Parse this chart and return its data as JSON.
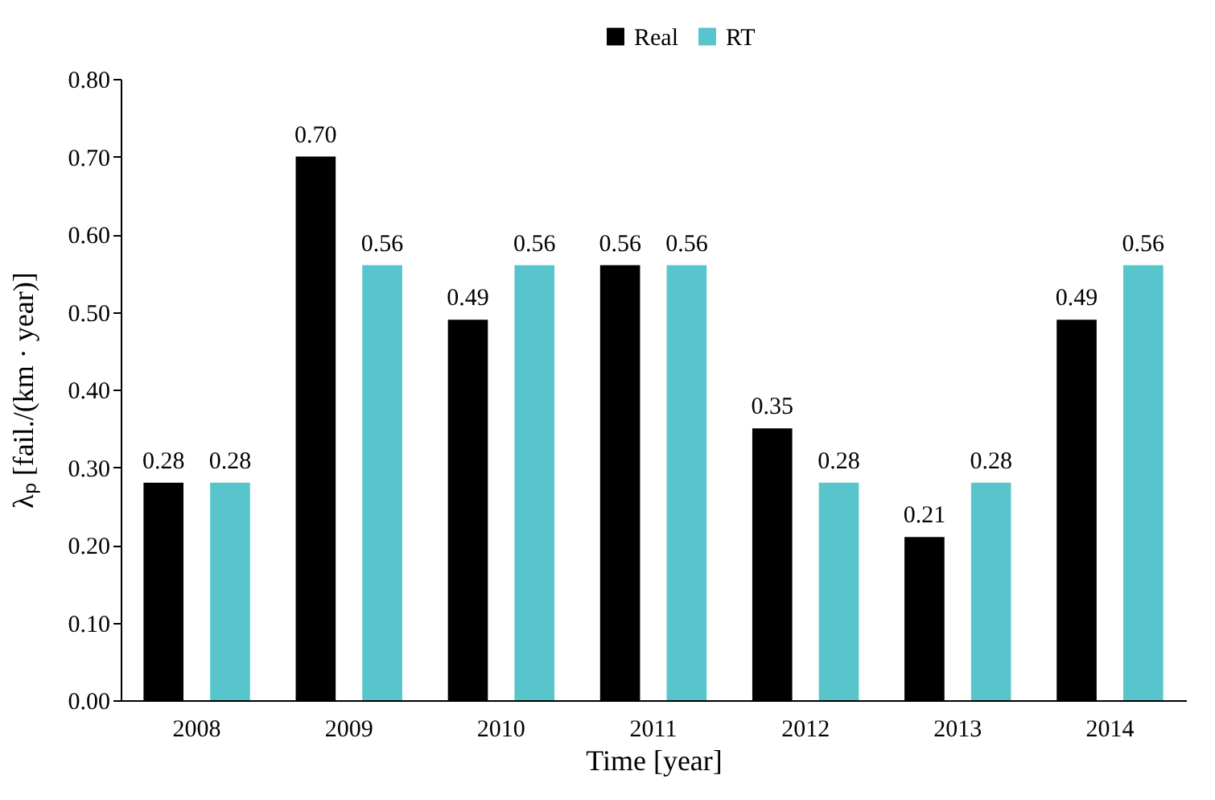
{
  "chart_data": {
    "type": "bar",
    "xlabel": "Time [year]",
    "ylabel": "λₚ [fail./(km · year)]",
    "categories": [
      "2008",
      "2009",
      "2010",
      "2011",
      "2012",
      "2013",
      "2014"
    ],
    "series": [
      {
        "name": "Real",
        "color": "#000000",
        "values": [
          0.28,
          0.7,
          0.49,
          0.56,
          0.35,
          0.21,
          0.49
        ],
        "value_labels": [
          "0.28",
          "0.70",
          "0.49",
          "0.56",
          "0.35",
          "0.21",
          "0.49"
        ]
      },
      {
        "name": "RT",
        "color": "#57c5cb",
        "values": [
          0.28,
          0.56,
          0.56,
          0.56,
          0.28,
          0.28,
          0.56
        ],
        "value_labels": [
          "0.28",
          "0.56",
          "0.56",
          "0.56",
          "0.28",
          "0.28",
          "0.56"
        ]
      }
    ],
    "ylim": [
      0,
      0.8
    ],
    "yticks": [
      {
        "value": 0,
        "label": "0.00"
      },
      {
        "value": 0.1,
        "label": "0.10"
      },
      {
        "value": 0.2,
        "label": "0.20"
      },
      {
        "value": 0.3,
        "label": "0.30"
      },
      {
        "value": 0.4,
        "label": "0.40"
      },
      {
        "value": 0.5,
        "label": "0.50"
      },
      {
        "value": 0.6,
        "label": "0.60"
      },
      {
        "value": 0.7,
        "label": "0.70"
      },
      {
        "value": 0.8,
        "label": "0.80"
      }
    ],
    "grid": false,
    "legend": "top"
  }
}
